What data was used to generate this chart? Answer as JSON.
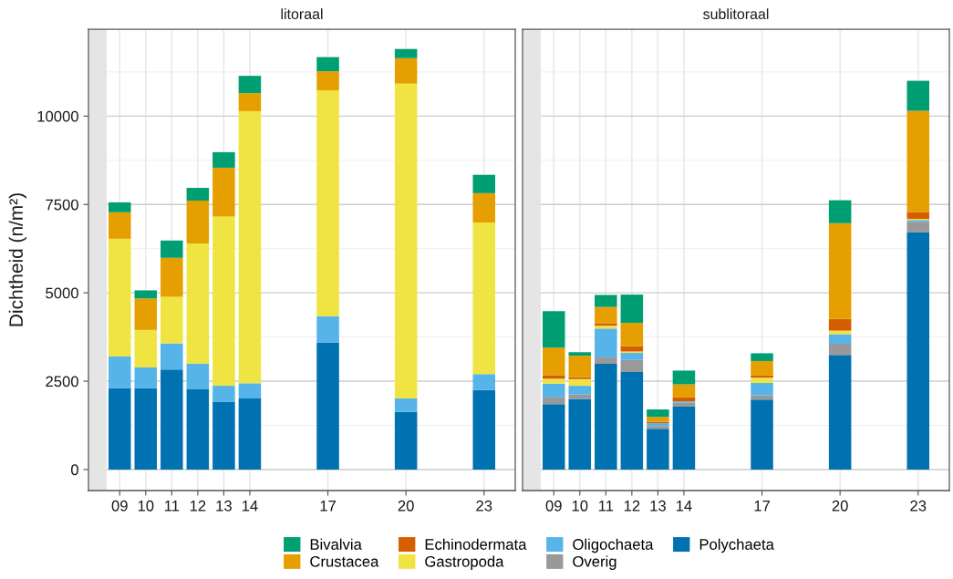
{
  "chart_data": [
    {
      "type": "bar",
      "title": "litoraal",
      "ylabel": "Dichtheid (n/m²)",
      "stacked": true,
      "x": [
        9,
        10,
        11,
        12,
        13,
        14,
        17,
        20,
        23
      ],
      "series": [
        {
          "name": "Polychaeta",
          "color": "#0072B2",
          "values": [
            2300,
            2300,
            2830,
            2280,
            1920,
            2010,
            3600,
            1630,
            2250
          ]
        },
        {
          "name": "Oligochaeta",
          "color": "#56B4E9",
          "values": [
            900,
            590,
            740,
            720,
            450,
            430,
            740,
            380,
            450
          ]
        },
        {
          "name": "Gastropoda",
          "color": "#F0E442",
          "values": [
            3330,
            1060,
            1320,
            3400,
            4790,
            7700,
            6390,
            8910,
            4290
          ]
        },
        {
          "name": "Crustacea",
          "color": "#E69F00",
          "values": [
            750,
            890,
            1100,
            1210,
            1380,
            510,
            540,
            720,
            830
          ]
        },
        {
          "name": "Bivalvia",
          "color": "#009E73",
          "values": [
            280,
            230,
            490,
            360,
            440,
            490,
            400,
            260,
            520
          ]
        }
      ],
      "xlim": [
        7.8,
        24.2
      ],
      "xticks": [
        {
          "value": 9,
          "label": "09"
        },
        10,
        11,
        12,
        13,
        14,
        17,
        20,
        23
      ],
      "ylim": [
        -595,
        12460
      ],
      "yticks": [
        0,
        2500,
        5000,
        7500,
        10000
      ],
      "grid": true,
      "legend": "bottom",
      "bands": [
        {
          "axis": "x",
          "from": 7.8,
          "to": 8.5,
          "color": "#e5e5e5"
        }
      ]
    },
    {
      "type": "bar",
      "title": "sublitoraal",
      "stacked": true,
      "x": [
        9,
        10,
        11,
        12,
        13,
        14,
        17,
        20,
        23
      ],
      "series": [
        {
          "name": "Polychaeta",
          "color": "#0072B2",
          "values": [
            1850,
            2000,
            2990,
            2760,
            1150,
            1780,
            1980,
            3240,
            6710
          ]
        },
        {
          "name": "Overig",
          "color": "#999999",
          "values": [
            190,
            120,
            180,
            340,
            80,
            110,
            120,
            320,
            300
          ]
        },
        {
          "name": "Oligochaeta",
          "color": "#56B4E9",
          "values": [
            390,
            250,
            820,
            200,
            80,
            40,
            350,
            270,
            50
          ]
        },
        {
          "name": "Gastropoda",
          "color": "#F0E442",
          "values": [
            140,
            190,
            80,
            40,
            0,
            0,
            150,
            100,
            30
          ]
        },
        {
          "name": "Echinodermata",
          "color": "#D55E00",
          "values": [
            100,
            50,
            70,
            150,
            40,
            110,
            60,
            330,
            200
          ]
        },
        {
          "name": "Crustacea",
          "color": "#E69F00",
          "values": [
            780,
            610,
            460,
            660,
            140,
            370,
            410,
            2710,
            2860
          ]
        },
        {
          "name": "Bivalvia",
          "color": "#009E73",
          "values": [
            1030,
            100,
            340,
            800,
            210,
            390,
            220,
            650,
            850
          ]
        }
      ],
      "xlim": [
        7.8,
        24.2
      ],
      "xticks": [
        {
          "value": 9,
          "label": "09"
        },
        10,
        11,
        12,
        13,
        14,
        17,
        20,
        23
      ],
      "ylim": [
        -595,
        12460
      ],
      "yticks": [
        0,
        2500,
        5000,
        7500,
        10000
      ],
      "grid": true,
      "tick_labels": "x",
      "legend": "bottom",
      "bands": [
        {
          "axis": "x",
          "from": 7.8,
          "to": 8.5,
          "color": "#e5e5e5"
        }
      ]
    }
  ]
}
